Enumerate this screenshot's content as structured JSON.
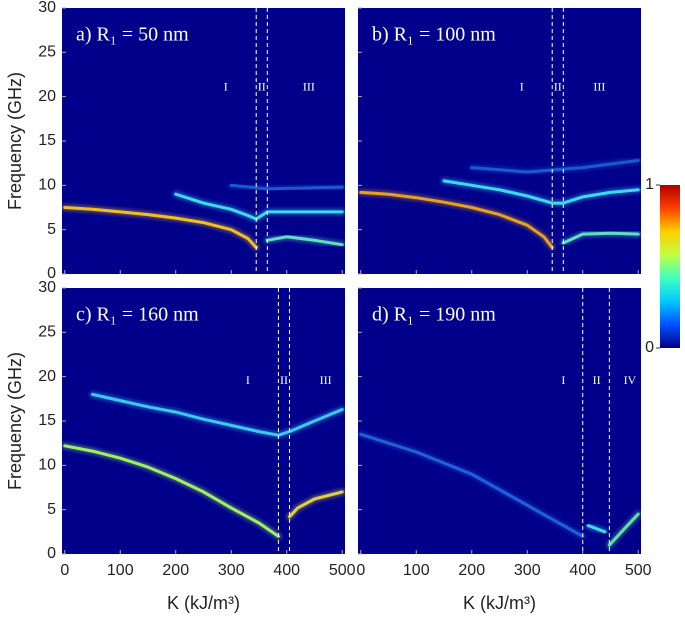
{
  "chart_data": [
    {
      "type": "line",
      "title": "a) R₁ = 50 nm",
      "ylabel": "Frequency (GHz)",
      "background": "#00008b",
      "xlim": [
        -5,
        505
      ],
      "ylim": [
        0,
        30
      ],
      "xticks": [
        0,
        100,
        200,
        300,
        400,
        500
      ],
      "yticks": [
        0,
        5,
        10,
        15,
        20,
        25,
        30
      ],
      "xtick_labels": false,
      "ytick_labels": true,
      "vlines": [
        345,
        365
      ],
      "regions": [
        {
          "label": "I",
          "x": 290,
          "y": 21
        },
        {
          "label": "II",
          "x": 355,
          "y": 21
        },
        {
          "label": "III",
          "x": 440,
          "y": 21
        }
      ],
      "series": [
        {
          "color": "#f0c020",
          "x": [
            0,
            50,
            100,
            150,
            200,
            250,
            300,
            330,
            345
          ],
          "values": [
            7.5,
            7.3,
            7.0,
            6.7,
            6.3,
            5.8,
            5.0,
            4.0,
            3.0
          ]
        },
        {
          "color": "#40d8f0",
          "x": [
            200,
            250,
            300,
            330,
            345,
            365,
            400,
            450,
            500
          ],
          "values": [
            9,
            8,
            7.3,
            6.6,
            6.2,
            7.0,
            7.0,
            7.0,
            7.0
          ]
        },
        {
          "color": "#60e0c0",
          "x": [
            365,
            400,
            450,
            500
          ],
          "values": [
            3.8,
            4.2,
            3.8,
            3.3
          ]
        },
        {
          "color": "#1a5ad0",
          "x": [
            300,
            365,
            500
          ],
          "values": [
            10,
            9.6,
            9.8
          ]
        }
      ]
    },
    {
      "type": "line",
      "title": "b) R₁ = 100 nm",
      "background": "#00008b",
      "xlim": [
        -5,
        505
      ],
      "ylim": [
        0,
        30
      ],
      "xticks": [
        0,
        100,
        200,
        300,
        400,
        500
      ],
      "yticks": [
        0,
        5,
        10,
        15,
        20,
        25,
        30
      ],
      "xtick_labels": false,
      "ytick_labels": false,
      "vlines": [
        345,
        365
      ],
      "regions": [
        {
          "label": "I",
          "x": 290,
          "y": 21
        },
        {
          "label": "II",
          "x": 355,
          "y": 21
        },
        {
          "label": "III",
          "x": 430,
          "y": 21
        }
      ],
      "series": [
        {
          "color": "#e8a020",
          "x": [
            0,
            50,
            100,
            150,
            200,
            250,
            300,
            330,
            345
          ],
          "values": [
            9.2,
            9.0,
            8.6,
            8.1,
            7.5,
            6.7,
            5.5,
            4.2,
            3.0
          ]
        },
        {
          "color": "#40d8f0",
          "x": [
            150,
            200,
            250,
            300,
            345,
            365,
            400,
            450,
            500
          ],
          "values": [
            10.5,
            10,
            9.5,
            8.8,
            8.0,
            8.0,
            8.7,
            9.2,
            9.5
          ]
        },
        {
          "color": "#60e0c0",
          "x": [
            365,
            400,
            450,
            500
          ],
          "values": [
            3.5,
            4.5,
            4.6,
            4.5
          ]
        },
        {
          "color": "#1a5ad0",
          "x": [
            200,
            300,
            400,
            500
          ],
          "values": [
            12,
            11.5,
            12,
            12.8
          ]
        }
      ]
    },
    {
      "type": "line",
      "title": "c) R₁ = 160 nm",
      "ylabel": "Frequency (GHz)",
      "xlabel": "K (kJ/m³)",
      "background": "#00008b",
      "xlim": [
        -5,
        505
      ],
      "ylim": [
        0,
        30
      ],
      "xticks": [
        0,
        100,
        200,
        300,
        400,
        500
      ],
      "yticks": [
        0,
        5,
        10,
        15,
        20,
        25,
        30
      ],
      "xtick_labels": true,
      "ytick_labels": true,
      "vlines": [
        385,
        405
      ],
      "regions": [
        {
          "label": "I",
          "x": 330,
          "y": 19.5
        },
        {
          "label": "II",
          "x": 395,
          "y": 19.5
        },
        {
          "label": "III",
          "x": 470,
          "y": 19.5
        }
      ],
      "series": [
        {
          "color": "#a0f060",
          "x": [
            0,
            50,
            100,
            150,
            200,
            250,
            300,
            350,
            385
          ],
          "values": [
            12.2,
            11.6,
            10.8,
            9.8,
            8.5,
            7,
            5.2,
            3.5,
            2.0
          ]
        },
        {
          "color": "#3cc8f0",
          "x": [
            50,
            100,
            150,
            200,
            250,
            300,
            350,
            385,
            405,
            450,
            500
          ],
          "values": [
            18,
            17.3,
            16.6,
            16,
            15.2,
            14.5,
            13.8,
            13.4,
            13.8,
            15,
            16.3
          ]
        },
        {
          "color": "#e0d040",
          "x": [
            405,
            420,
            450,
            500
          ],
          "values": [
            4.2,
            5.2,
            6.2,
            7.0
          ]
        }
      ]
    },
    {
      "type": "line",
      "title": "d) R₁ = 190 nm",
      "xlabel": "K (kJ/m³)",
      "background": "#00008b",
      "xlim": [
        -5,
        505
      ],
      "ylim": [
        0,
        30
      ],
      "xticks": [
        0,
        100,
        200,
        300,
        400,
        500
      ],
      "yticks": [
        0,
        5,
        10,
        15,
        20,
        25,
        30
      ],
      "xtick_labels": true,
      "ytick_labels": false,
      "vlines": [
        400,
        448
      ],
      "regions": [
        {
          "label": "I",
          "x": 365,
          "y": 19.5
        },
        {
          "label": "II",
          "x": 425,
          "y": 19.5
        },
        {
          "label": "IV",
          "x": 485,
          "y": 19.5
        }
      ],
      "series": [
        {
          "color": "#2060d8",
          "x": [
            0,
            100,
            200,
            300,
            400
          ],
          "values": [
            13.5,
            11.5,
            9,
            5.5,
            2
          ]
        },
        {
          "color": "#40d8f0",
          "x": [
            410,
            440
          ],
          "values": [
            3.2,
            2.5
          ]
        },
        {
          "color": "#60e0a0",
          "x": [
            448,
            470,
            500
          ],
          "values": [
            1,
            2.5,
            4.5
          ]
        }
      ]
    },
    {
      "type": "colorbar",
      "ylim": [
        0,
        1
      ],
      "yticks": [
        0,
        1
      ],
      "colors": [
        "#00008b",
        "#0050ff",
        "#00c8ff",
        "#40ffc0",
        "#c0ff40",
        "#ffd000",
        "#ff4000",
        "#b00000"
      ]
    }
  ]
}
